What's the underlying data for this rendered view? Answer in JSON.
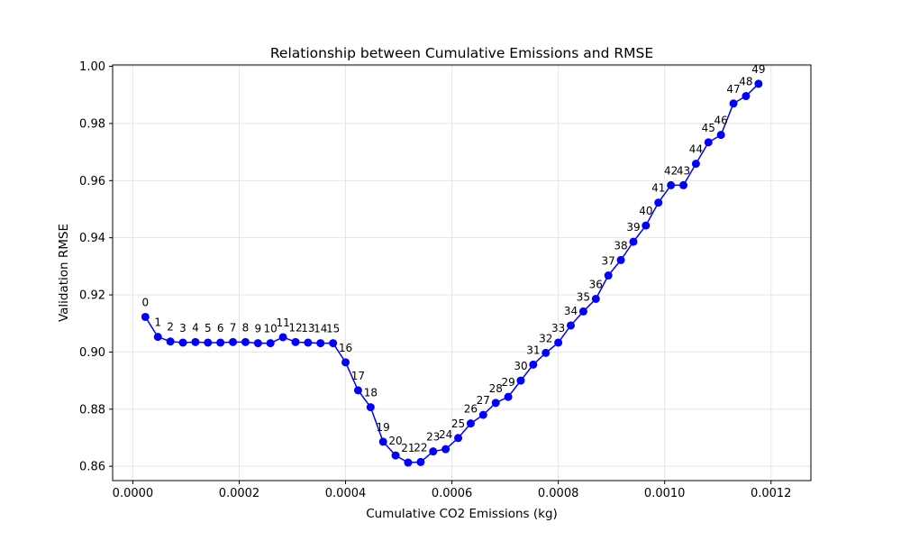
{
  "colors": {
    "series": "#0000ff",
    "grid": "#e6e6e6",
    "axis": "#000000"
  },
  "chart_data": {
    "type": "line",
    "title": "Relationship between Cumulative Emissions and RMSE",
    "xlabel": "Cumulative CO2 Emissions (kg)",
    "ylabel": "Validation RMSE",
    "xlim": [
      -3.8e-05,
      0.001275
    ],
    "ylim": [
      0.855,
      1.0005
    ],
    "grid": true,
    "marker": "circle",
    "xticks": [
      0,
      0.0002,
      0.0004,
      0.0006,
      0.0008,
      0.001,
      0.0012
    ],
    "xtick_labels": [
      "0.0000",
      "0.0002",
      "0.0004",
      "0.0006",
      "0.0008",
      "0.0010",
      "0.0012"
    ],
    "yticks": [
      0.86,
      0.88,
      0.9,
      0.92,
      0.94,
      0.96,
      0.98,
      1.0
    ],
    "ytick_labels": [
      "0.86",
      "0.88",
      "0.90",
      "0.92",
      "0.94",
      "0.96",
      "0.98",
      "1.00"
    ],
    "series": [
      {
        "x": [
          2.35e-05,
          4.71e-05,
          7.06e-05,
          9.41e-05,
          0.0001177,
          0.0001412,
          0.0001647,
          0.0001882,
          0.0002118,
          0.0002353,
          0.0002588,
          0.0002824,
          0.0003059,
          0.0003294,
          0.0003529,
          0.0003765,
          0.0004,
          0.0004235,
          0.0004471,
          0.0004706,
          0.0004941,
          0.0005176,
          0.0005412,
          0.0005647,
          0.0005882,
          0.0006118,
          0.0006353,
          0.0006588,
          0.0006824,
          0.0007059,
          0.0007294,
          0.0007529,
          0.0007765,
          0.0008,
          0.0008235,
          0.0008471,
          0.0008706,
          0.0008941,
          0.0009176,
          0.0009412,
          0.0009647,
          0.0009882,
          0.0010118,
          0.0010353,
          0.0010588,
          0.0010824,
          0.0011059,
          0.0011294,
          0.0011529,
          0.0011765
        ],
        "y": [
          0.9123,
          0.9053,
          0.9037,
          0.9033,
          0.9035,
          0.9033,
          0.9033,
          0.9035,
          0.9035,
          0.9031,
          0.9031,
          0.9052,
          0.9035,
          0.9033,
          0.9031,
          0.9031,
          0.8964,
          0.8866,
          0.8807,
          0.8686,
          0.8638,
          0.8613,
          0.8615,
          0.8652,
          0.866,
          0.8699,
          0.875,
          0.878,
          0.8822,
          0.8843,
          0.89,
          0.8956,
          0.8997,
          0.9033,
          0.9093,
          0.9142,
          0.9186,
          0.9268,
          0.9322,
          0.9386,
          0.9443,
          0.9523,
          0.9584,
          0.9584,
          0.9659,
          0.9734,
          0.976,
          0.987,
          0.9896,
          0.9939
        ],
        "labels": [
          "0",
          "1",
          "2",
          "3",
          "4",
          "5",
          "6",
          "7",
          "8",
          "9",
          "10",
          "11",
          "12",
          "13",
          "14",
          "15",
          "16",
          "17",
          "18",
          "19",
          "20",
          "21",
          "22",
          "23",
          "24",
          "25",
          "26",
          "27",
          "28",
          "29",
          "30",
          "31",
          "32",
          "33",
          "34",
          "35",
          "36",
          "37",
          "38",
          "39",
          "40",
          "41",
          "42",
          "43",
          "44",
          "45",
          "46",
          "47",
          "48",
          "49"
        ]
      }
    ]
  }
}
